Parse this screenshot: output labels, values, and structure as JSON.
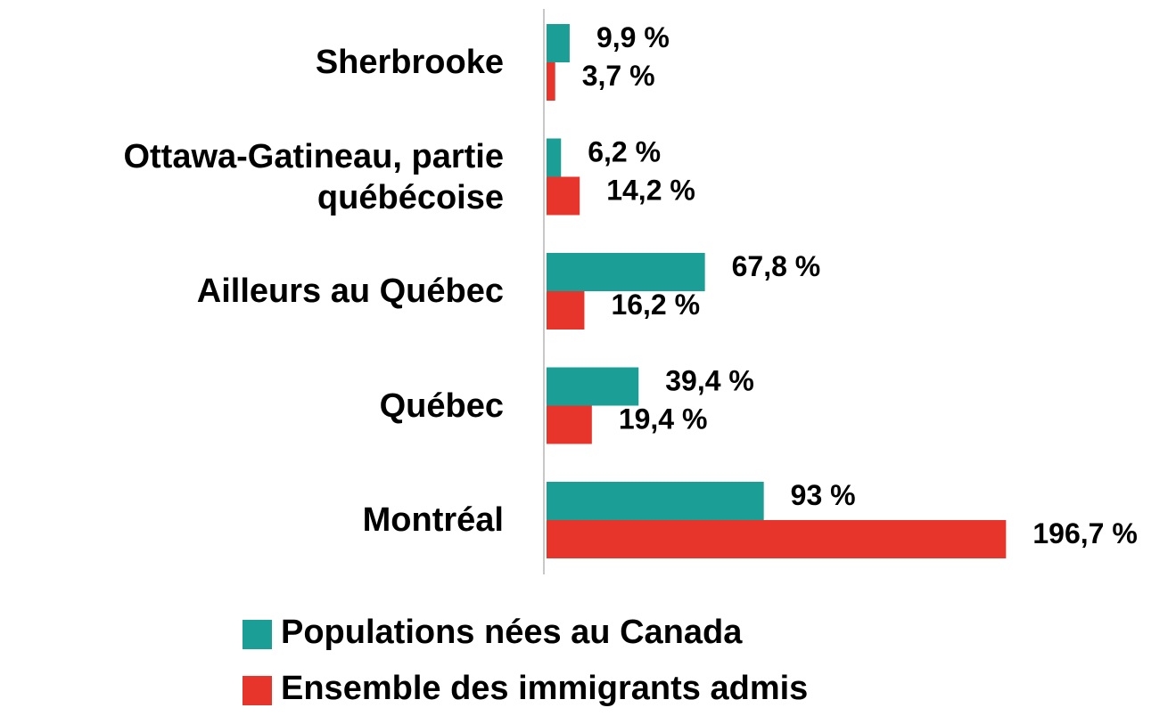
{
  "chart_data": {
    "type": "bar",
    "orientation": "horizontal",
    "categories": [
      "Sherbrooke",
      "Ottawa-Gatineau, partie québécoise",
      "Ailleurs au Québec",
      "Québec",
      "Montréal"
    ],
    "series": [
      {
        "name": "Populations nées au Canada",
        "color": "#1a9e96",
        "values": [
          9.9,
          6.2,
          67.8,
          39.4,
          93
        ],
        "value_labels": [
          "9,9 %",
          "6,2 %",
          "67,8 %",
          "39,4 %",
          "93 %"
        ]
      },
      {
        "name": "Ensemble des immigrants admis",
        "color": "#e8352b",
        "values": [
          3.7,
          14.2,
          16.2,
          19.4,
          196.7
        ],
        "value_labels": [
          "3,7 %",
          "14,2 %",
          "16,2 %",
          "19,4 %",
          "196,7 %"
        ]
      }
    ],
    "xlim": [
      0,
      200
    ],
    "legend": "bottom"
  }
}
